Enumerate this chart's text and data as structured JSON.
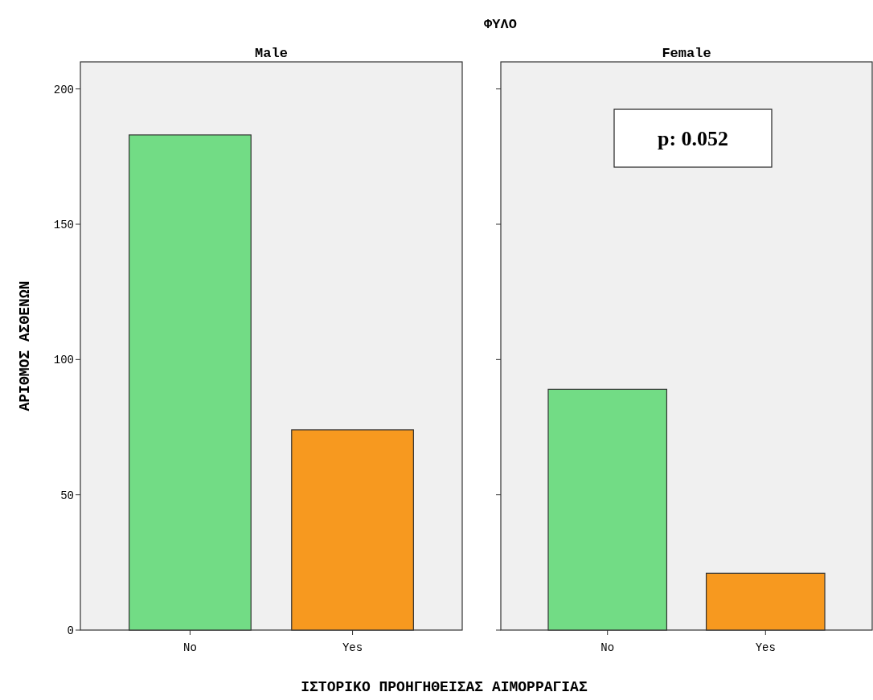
{
  "chart_data": [
    {
      "type": "bar",
      "title": "Male",
      "annotations": [
        "ΦΥΛΟ"
      ],
      "xlabel": "ΙΣΤΟΡΙΚΟ ΠΡΟΗΓΗΘΕΙΣΑΣ ΑΙΜΟΡΡΑΓΙΑΣ",
      "ylabel": "ΑΡΙΘΜΟΣ ΑΣΘΕΝΩΝ",
      "categories": [
        "No",
        "Yes"
      ],
      "values": [
        183,
        74
      ],
      "colors": [
        "#72dc85",
        "#f7991f"
      ],
      "ylim": [
        0,
        210
      ],
      "yticks": [
        0,
        50,
        100,
        150,
        200
      ],
      "grid": false
    },
    {
      "type": "bar",
      "title": "Female",
      "annotations": [
        "p: 0.052"
      ],
      "categories": [
        "No",
        "Yes"
      ],
      "values": [
        89,
        21
      ],
      "colors": [
        "#72dc85",
        "#f7991f"
      ],
      "ylim": [
        0,
        210
      ],
      "yticks": [
        0,
        50,
        100,
        150,
        200
      ],
      "grid": false,
      "tick_labels": "x"
    }
  ]
}
